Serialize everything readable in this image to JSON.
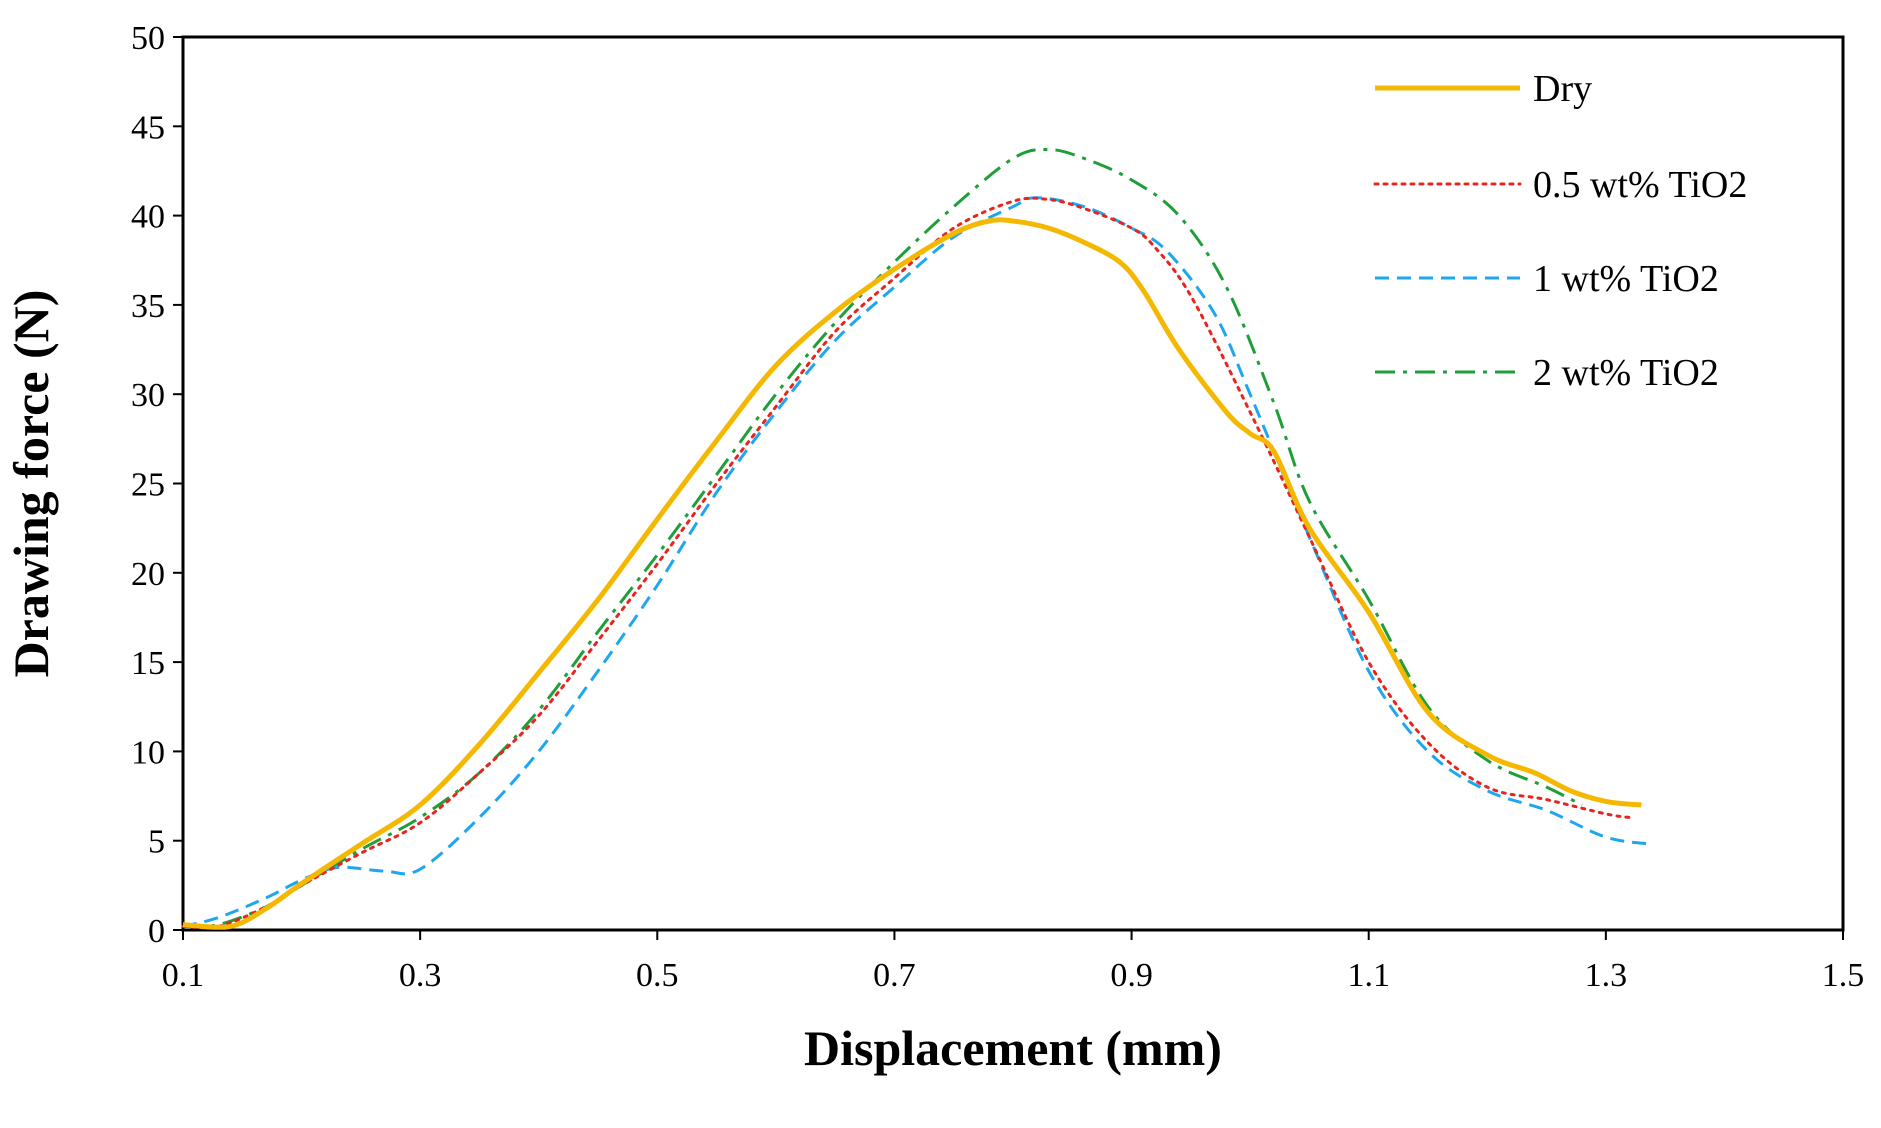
{
  "chart_data": {
    "type": "line",
    "title": "",
    "xlabel": "Displacement (mm)",
    "ylabel": "Drawing force (N)",
    "xlim": [
      0.1,
      1.5
    ],
    "ylim": [
      0,
      50
    ],
    "xticks": [
      0.1,
      0.3,
      0.5,
      0.7,
      0.9,
      1.1,
      1.3,
      1.5
    ],
    "xtick_labels": [
      "0.1",
      "0.3",
      "0.5",
      "0.7",
      "0.9",
      "1.1",
      "1.3",
      "1.5"
    ],
    "yticks": [
      0,
      5,
      10,
      15,
      20,
      25,
      30,
      35,
      40,
      45,
      50
    ],
    "ytick_labels": [
      "0",
      "5",
      "10",
      "15",
      "20",
      "25",
      "30",
      "35",
      "40",
      "45",
      "50"
    ],
    "grid": false,
    "legend_position": "top-right",
    "series": [
      {
        "name": "Dry",
        "color": "#F5B800",
        "style": "solid",
        "x": [
          0.1,
          0.14,
          0.17,
          0.2,
          0.25,
          0.3,
          0.35,
          0.4,
          0.45,
          0.5,
          0.55,
          0.6,
          0.65,
          0.7,
          0.75,
          0.78,
          0.8,
          0.83,
          0.86,
          0.89,
          0.91,
          0.94,
          0.98,
          1.0,
          1.02,
          1.05,
          1.1,
          1.15,
          1.2,
          1.24,
          1.27,
          1.3,
          1.33
        ],
        "y": [
          0.3,
          0.2,
          1.2,
          2.6,
          4.8,
          7.0,
          10.4,
          14.4,
          18.5,
          23.0,
          27.4,
          31.6,
          34.6,
          37.0,
          39.0,
          39.7,
          39.7,
          39.3,
          38.5,
          37.4,
          35.8,
          32.5,
          29.0,
          27.8,
          26.8,
          22.5,
          17.8,
          12.2,
          9.8,
          8.8,
          7.8,
          7.2,
          7.0
        ]
      },
      {
        "name": "0.5 wt% TiO2",
        "color": "#E8241E",
        "style": "dotted",
        "x": [
          0.1,
          0.13,
          0.17,
          0.2,
          0.25,
          0.3,
          0.35,
          0.4,
          0.45,
          0.5,
          0.55,
          0.6,
          0.65,
          0.7,
          0.75,
          0.8,
          0.83,
          0.86,
          0.9,
          0.92,
          0.95,
          1.0,
          1.05,
          1.1,
          1.15,
          1.2,
          1.25,
          1.3,
          1.32
        ],
        "y": [
          0.2,
          0.2,
          1.3,
          2.5,
          4.3,
          6.0,
          8.8,
          12.0,
          16.2,
          20.5,
          25.0,
          29.3,
          33.5,
          36.5,
          39.3,
          40.8,
          40.9,
          40.4,
          39.3,
          38.2,
          35.5,
          29.0,
          22.0,
          15.0,
          10.5,
          8.0,
          7.3,
          6.5,
          6.3
        ]
      },
      {
        "name": "1 wt% TiO2",
        "color": "#1EA7F0",
        "style": "dashed",
        "x": [
          0.1,
          0.13,
          0.17,
          0.2,
          0.23,
          0.27,
          0.3,
          0.35,
          0.4,
          0.45,
          0.5,
          0.55,
          0.6,
          0.65,
          0.7,
          0.75,
          0.8,
          0.82,
          0.86,
          0.9,
          0.93,
          0.97,
          1.0,
          1.05,
          1.1,
          1.15,
          1.2,
          1.25,
          1.3,
          1.34
        ],
        "y": [
          0.2,
          0.7,
          1.8,
          2.8,
          3.5,
          3.3,
          3.4,
          6.3,
          10.0,
          14.5,
          19.3,
          24.5,
          29.0,
          33.0,
          36.0,
          38.8,
          40.5,
          41.0,
          40.5,
          39.3,
          38.0,
          34.5,
          30.0,
          22.0,
          14.5,
          10.0,
          7.8,
          6.7,
          5.2,
          4.8
        ]
      },
      {
        "name": "2 wt% TiO2",
        "color": "#1F9E3A",
        "style": "dashdot",
        "x": [
          0.1,
          0.13,
          0.17,
          0.2,
          0.25,
          0.3,
          0.35,
          0.4,
          0.45,
          0.5,
          0.55,
          0.6,
          0.65,
          0.7,
          0.75,
          0.8,
          0.83,
          0.86,
          0.9,
          0.94,
          0.98,
          1.02,
          1.05,
          1.1,
          1.15,
          1.2,
          1.25,
          1.28
        ],
        "y": [
          0.2,
          0.3,
          1.3,
          2.5,
          4.5,
          6.3,
          8.8,
          12.3,
          16.7,
          21.0,
          25.5,
          30.0,
          34.0,
          37.4,
          40.5,
          43.2,
          43.7,
          43.2,
          42.0,
          40.0,
          36.0,
          29.5,
          24.0,
          18.5,
          12.5,
          9.5,
          8.0,
          7.0
        ]
      }
    ]
  }
}
